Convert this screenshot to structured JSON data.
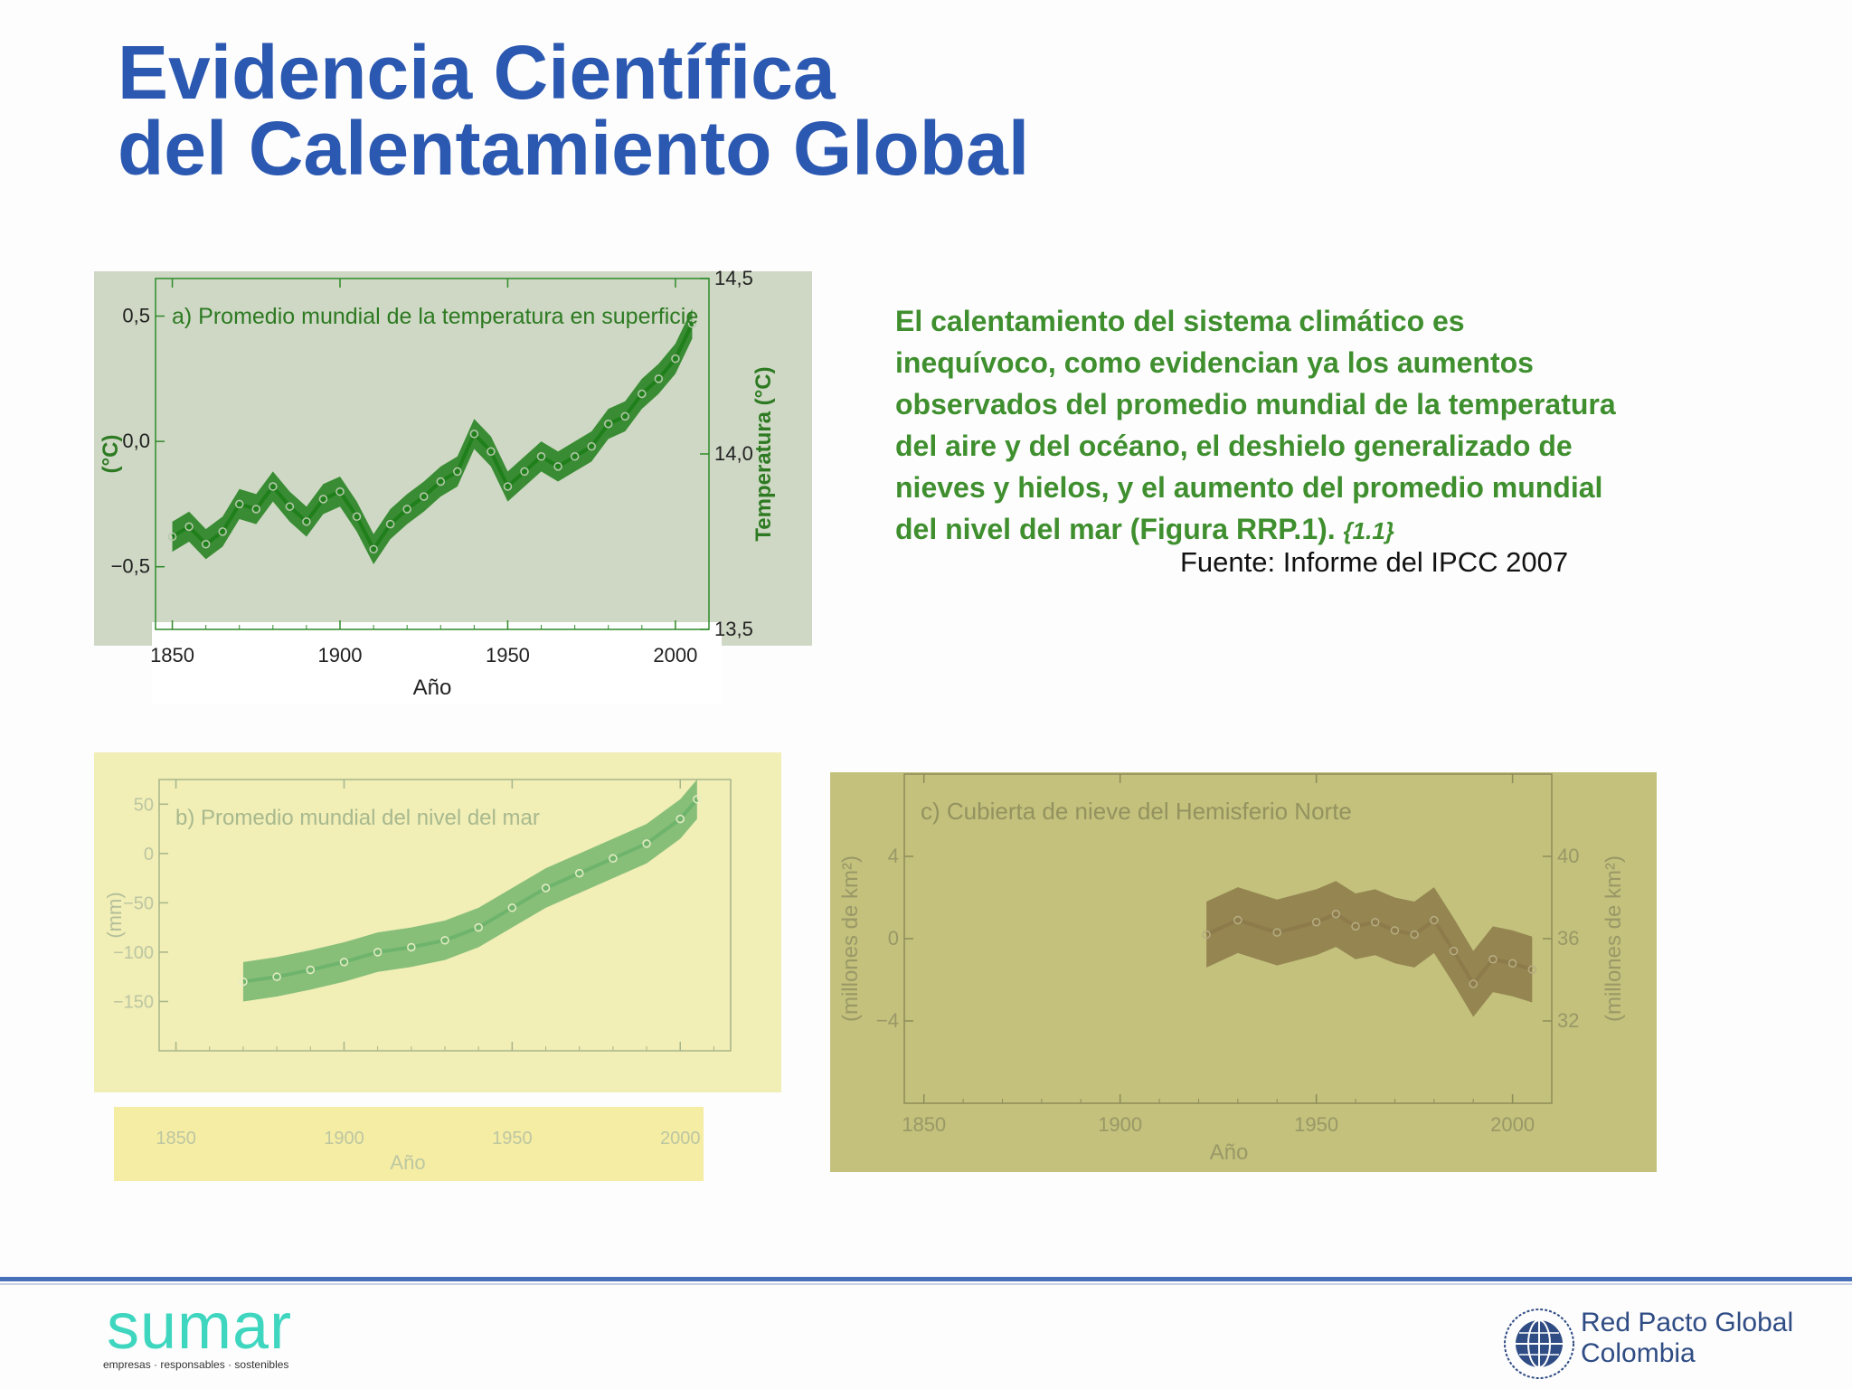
{
  "title_line1": "Evidencia Científica",
  "title_line2": "del Calentamiento Global",
  "statement": "El calentamiento del sistema climático es inequívoco, como evidencian ya los aumentos observados del promedio mundial de la temperatura del aire y del océano, el deshielo generalizado de nieves y hielos, y el aumento del promedio mundial del nivel del mar (Figura RRP.1).",
  "statement_ref": "{1.1}",
  "source": "Fuente: Informe del IPCC 2007",
  "logo_sumar": "sumar",
  "logo_sumar_tagline": "empresas · responsables · sostenibles",
  "logo_rpg_line1": "Red Pacto Global",
  "logo_rpg_line2": "Colombia",
  "colors": {
    "title": "#2b58b0",
    "statement": "#3f8f2f",
    "divider": "#4770b8",
    "sumar": "#3fd6c0"
  },
  "icons": [
    "global-compact-globe-icon"
  ],
  "chart_data": [
    {
      "type": "line",
      "title": "a) Promedio mundial de la temperatura en superficie",
      "xlabel": "Año",
      "ylabel": "(°C)",
      "ylabel_right": "Temperatura (°C)",
      "xlim": [
        1845,
        2010
      ],
      "ylim": [
        -0.75,
        0.65
      ],
      "ylim_right": [
        13.5,
        14.5
      ],
      "xticks": [
        "1850",
        "1900",
        "1950",
        "2000"
      ],
      "yticks": [
        "0,5",
        "0,0",
        "−0,5"
      ],
      "yticks_right": [
        "14,5",
        "14,0",
        "13,5"
      ],
      "x": [
        1850,
        1855,
        1860,
        1865,
        1870,
        1875,
        1880,
        1885,
        1890,
        1895,
        1900,
        1905,
        1910,
        1915,
        1920,
        1925,
        1930,
        1935,
        1940,
        1945,
        1950,
        1955,
        1960,
        1965,
        1970,
        1975,
        1980,
        1985,
        1990,
        1995,
        2000,
        2005
      ],
      "values": [
        -0.38,
        -0.34,
        -0.41,
        -0.36,
        -0.25,
        -0.27,
        -0.18,
        -0.26,
        -0.32,
        -0.23,
        -0.2,
        -0.3,
        -0.43,
        -0.33,
        -0.27,
        -0.22,
        -0.16,
        -0.12,
        0.03,
        -0.04,
        -0.18,
        -0.12,
        -0.06,
        -0.1,
        -0.06,
        -0.02,
        0.07,
        0.1,
        0.19,
        0.25,
        0.33,
        0.47
      ],
      "band_halfwidth": 0.06,
      "series_color": "#1f7f1a"
    },
    {
      "type": "line",
      "title": "b) Promedio mundial del nivel del mar",
      "xlabel": "Año",
      "ylabel": "(mm)",
      "xlim": [
        1845,
        2015
      ],
      "ylim": [
        -200,
        75
      ],
      "xticks": [
        "1850",
        "1900",
        "1950",
        "2000"
      ],
      "yticks": [
        "50",
        "0",
        "−50",
        "−100",
        "−150"
      ],
      "x": [
        1870,
        1880,
        1890,
        1900,
        1910,
        1920,
        1930,
        1940,
        1950,
        1960,
        1970,
        1980,
        1990,
        2000,
        2005
      ],
      "values": [
        -130,
        -125,
        -118,
        -110,
        -100,
        -95,
        -88,
        -75,
        -55,
        -35,
        -20,
        -5,
        10,
        35,
        55
      ],
      "band_halfwidth": 20,
      "series_color": "#6db36a"
    },
    {
      "type": "line",
      "title": "c) Cubierta de nieve del Hemisferio Norte",
      "xlabel": "Año",
      "ylabel": "(millones de km²)",
      "ylabel_right": "(millones de km²)",
      "xlim": [
        1845,
        2010
      ],
      "ylim": [
        -8,
        8
      ],
      "ylim_right": [
        28,
        44
      ],
      "xticks": [
        "1850",
        "1900",
        "1950",
        "2000"
      ],
      "yticks": [
        "4",
        "0",
        "−4"
      ],
      "yticks_right": [
        "40",
        "36",
        "32"
      ],
      "x": [
        1922,
        1930,
        1940,
        1950,
        1955,
        1960,
        1965,
        1970,
        1975,
        1980,
        1985,
        1990,
        1995,
        2000,
        2005
      ],
      "values": [
        0.2,
        0.9,
        0.3,
        0.8,
        1.2,
        0.6,
        0.8,
        0.4,
        0.2,
        0.9,
        -0.6,
        -2.2,
        -1.0,
        -1.2,
        -1.5
      ],
      "band_halfwidth": 1.6,
      "series_color": "#8c7a4a"
    }
  ]
}
